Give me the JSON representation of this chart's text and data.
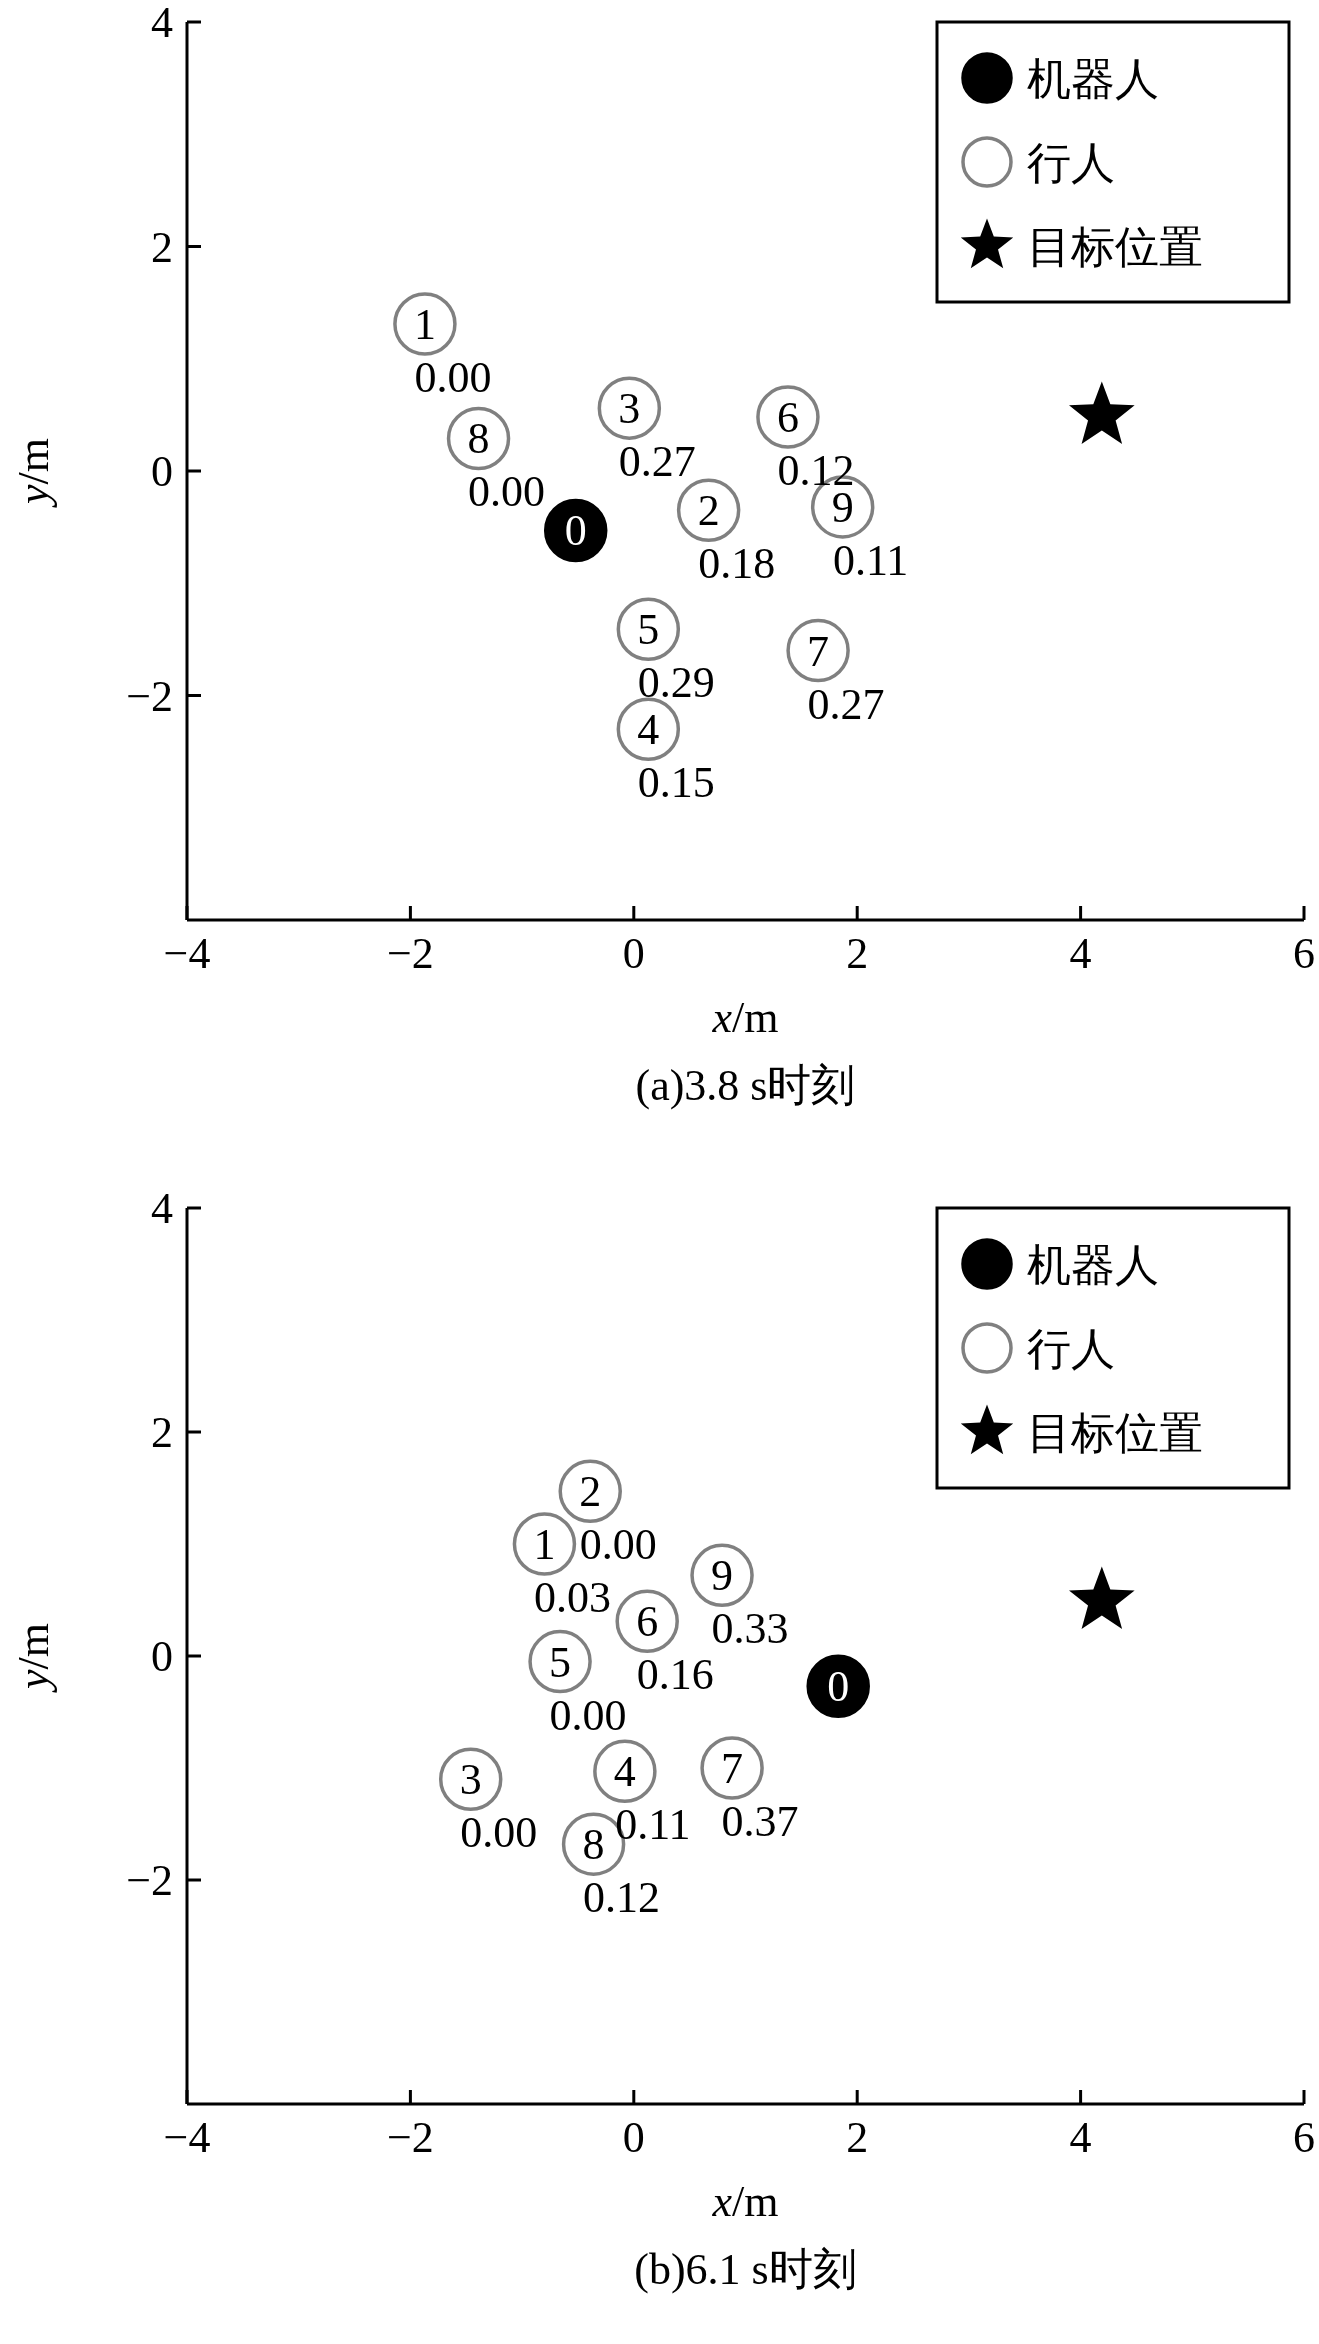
{
  "chart_data": [
    {
      "type": "scatter",
      "title": "(a)3.8 s时刻",
      "xlabel": "*x*/m",
      "ylabel": "*y*/m",
      "xlim": [
        -4,
        6
      ],
      "ylim": [
        -4,
        4
      ],
      "xticks": [
        -4,
        -2,
        0,
        2,
        4,
        6
      ],
      "yticks": [
        -2,
        0,
        2,
        4
      ],
      "legend": "top right",
      "series": [
        {
          "name": "机器人",
          "color": "#000000",
          "marker": "circle",
          "x": [
            -0.52
          ],
          "values": [
            -0.53
          ]
        },
        {
          "name": "行人",
          "color": "#808080",
          "marker": "circle",
          "x": [
            -1.87,
            0.67,
            -0.04,
            0.13,
            0.13,
            1.38,
            1.65,
            -1.39,
            1.87
          ],
          "values": [
            1.31,
            -0.35,
            0.56,
            -2.3,
            -1.41,
            0.48,
            -1.6,
            0.29,
            -0.32
          ]
        },
        {
          "name": "目标位置",
          "color": "#000000",
          "marker": "star",
          "x": [
            4.19
          ],
          "values": [
            0.49
          ]
        }
      ],
      "annotations": [
        {
          "text": "0",
          "x": -0.52,
          "y": -0.53
        },
        {
          "text": "1",
          "x": -1.87,
          "y": 1.31
        },
        {
          "text": "2",
          "x": 0.67,
          "y": -0.35
        },
        {
          "text": "3",
          "x": -0.04,
          "y": 0.56
        },
        {
          "text": "4",
          "x": 0.13,
          "y": -2.3
        },
        {
          "text": "5",
          "x": 0.13,
          "y": -1.41
        },
        {
          "text": "6",
          "x": 1.38,
          "y": 0.48
        },
        {
          "text": "7",
          "x": 1.65,
          "y": -1.6
        },
        {
          "text": "8",
          "x": -1.39,
          "y": 0.29
        },
        {
          "text": "9",
          "x": 1.87,
          "y": -0.32
        },
        {
          "text": "0.00",
          "x": -1.87,
          "y": 1.31
        },
        {
          "text": "0.18",
          "x": 0.67,
          "y": -0.35
        },
        {
          "text": "0.27",
          "x": -0.04,
          "y": 0.56
        },
        {
          "text": "0.15",
          "x": 0.13,
          "y": -2.3
        },
        {
          "text": "0.29",
          "x": 0.13,
          "y": -1.41
        },
        {
          "text": "0.12",
          "x": 1.38,
          "y": 0.48
        },
        {
          "text": "0.27",
          "x": 1.65,
          "y": -1.6
        },
        {
          "text": "0.00",
          "x": -1.39,
          "y": 0.29
        },
        {
          "text": "0.11",
          "x": 1.87,
          "y": -0.32
        }
      ]
    },
    {
      "type": "scatter",
      "title": "(b)6.1 s时刻",
      "xlabel": "*x*/m",
      "ylabel": "*y*/m",
      "xlim": [
        -4,
        6
      ],
      "ylim": [
        -4,
        4
      ],
      "xticks": [
        -4,
        -2,
        0,
        2,
        4,
        6
      ],
      "yticks": [
        -2,
        0,
        2,
        4
      ],
      "legend": "top right",
      "series": [
        {
          "name": "机器人",
          "color": "#000000",
          "marker": "circle",
          "x": [
            1.83
          ],
          "values": [
            -0.27
          ]
        },
        {
          "name": "行人",
          "color": "#808080",
          "marker": "circle",
          "x": [
            -0.8,
            -0.39,
            -1.46,
            -0.08,
            -0.66,
            0.12,
            0.88,
            -0.36,
            0.79
          ],
          "values": [
            1.0,
            1.47,
            -1.1,
            -1.03,
            -0.05,
            0.31,
            -1.0,
            -1.68,
            0.72
          ]
        },
        {
          "name": "目标位置",
          "color": "#000000",
          "marker": "star",
          "x": [
            4.19
          ],
          "values": [
            0.49
          ]
        }
      ],
      "annotations": [
        {
          "text": "0",
          "x": 1.83,
          "y": -0.27
        },
        {
          "text": "1",
          "x": -0.8,
          "y": 1.0
        },
        {
          "text": "2",
          "x": -0.39,
          "y": 1.47
        },
        {
          "text": "3",
          "x": -1.46,
          "y": -1.1
        },
        {
          "text": "4",
          "x": -0.08,
          "y": -1.03
        },
        {
          "text": "5",
          "x": -0.66,
          "y": -0.05
        },
        {
          "text": "6",
          "x": 0.12,
          "y": 0.31
        },
        {
          "text": "7",
          "x": 0.88,
          "y": -1.0
        },
        {
          "text": "8",
          "x": -0.36,
          "y": -1.68
        },
        {
          "text": "9",
          "x": 0.79,
          "y": 0.72
        },
        {
          "text": "0.03",
          "x": -0.8,
          "y": 1.0
        },
        {
          "text": "0.00",
          "x": -0.39,
          "y": 1.47
        },
        {
          "text": "0.00",
          "x": -1.46,
          "y": -1.1
        },
        {
          "text": "0.11",
          "x": -0.08,
          "y": -1.03
        },
        {
          "text": "0.00",
          "x": -0.66,
          "y": -0.05
        },
        {
          "text": "0.16",
          "x": 0.12,
          "y": 0.31
        },
        {
          "text": "0.37",
          "x": 0.88,
          "y": -1.0
        },
        {
          "text": "0.12",
          "x": -0.36,
          "y": -1.68
        },
        {
          "text": "0.33",
          "x": 0.79,
          "y": 0.72
        }
      ]
    }
  ]
}
